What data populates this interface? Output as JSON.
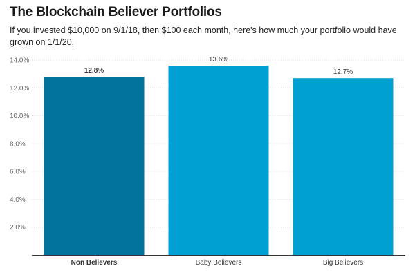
{
  "title": "The Blockchain Believer Portfolios",
  "subtitle": "If you invested $10,000 on 9/1/18, then $100 each month, here's how much your portfolio would have grown on 1/1/20.",
  "colors": {
    "highlight_bar": "#00729b",
    "bar": "#00a0d2",
    "grid": "#dddddd",
    "axis": "#333333"
  },
  "chart_data": {
    "type": "bar",
    "categories": [
      "Non Believers",
      "Baby Believers",
      "Big Believers"
    ],
    "values": [
      12.8,
      13.6,
      12.7
    ],
    "value_labels": [
      "12.8%",
      "13.6%",
      "12.7%"
    ],
    "highlighted_category": "Non Believers",
    "ylim": [
      0,
      14
    ],
    "yticks": [
      2,
      4,
      6,
      8,
      10,
      12,
      14
    ],
    "ytick_labels": [
      "2.0%",
      "4.0%",
      "6.0%",
      "8.0%",
      "10.0%",
      "12.0%",
      "14.0%"
    ],
    "grid": true,
    "legend": "none",
    "title": "The Blockchain Believer Portfolios",
    "xlabel": "",
    "ylabel": ""
  }
}
